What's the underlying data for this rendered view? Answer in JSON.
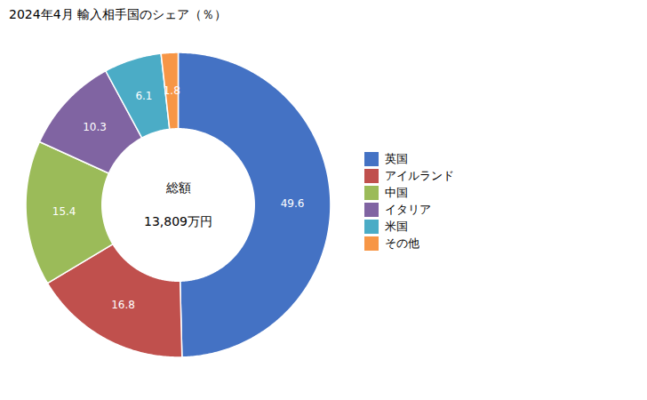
{
  "chart_data": {
    "type": "donut",
    "title": "2024年4月 輸入相手国のシェア（％）",
    "categories": [
      "英国",
      "アイルランド",
      "中国",
      "イタリア",
      "米国",
      "その他"
    ],
    "values": [
      49.6,
      16.8,
      15.4,
      10.3,
      6.1,
      1.8
    ],
    "colors": [
      "#4472C4",
      "#C0504D",
      "#9BBB59",
      "#8064A2",
      "#4BACC6",
      "#F79646"
    ],
    "data_labels": true,
    "legend": "right",
    "annotations": [
      "総額",
      "13,809万円"
    ]
  }
}
